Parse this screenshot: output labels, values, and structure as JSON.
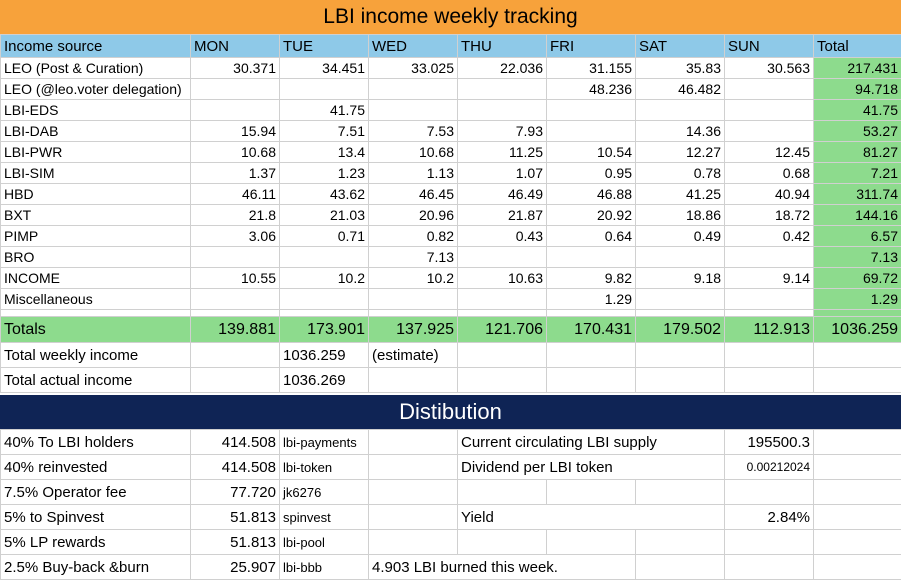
{
  "title": "LBI income weekly tracking",
  "header": [
    "Income source",
    "MON",
    "TUE",
    "WED",
    "THU",
    "FRI",
    "SAT",
    "SUN",
    "Total"
  ],
  "rows": [
    {
      "source": "LEO (Post & Curation)",
      "values": [
        "30.371",
        "34.451",
        "33.025",
        "22.036",
        "31.155",
        "35.83",
        "30.563"
      ],
      "total": "217.431"
    },
    {
      "source": "LEO (@leo.voter delegation)",
      "values": [
        "",
        "",
        "",
        "",
        "48.236",
        "46.482",
        ""
      ],
      "total": "94.718"
    },
    {
      "source": "LBI-EDS",
      "values": [
        "",
        "41.75",
        "",
        "",
        "",
        "",
        ""
      ],
      "total": "41.75"
    },
    {
      "source": "LBI-DAB",
      "values": [
        "15.94",
        "7.51",
        "7.53",
        "7.93",
        "",
        "14.36",
        ""
      ],
      "total": "53.27"
    },
    {
      "source": "LBI-PWR",
      "values": [
        "10.68",
        "13.4",
        "10.68",
        "11.25",
        "10.54",
        "12.27",
        "12.45"
      ],
      "total": "81.27"
    },
    {
      "source": "LBI-SIM",
      "values": [
        "1.37",
        "1.23",
        "1.13",
        "1.07",
        "0.95",
        "0.78",
        "0.68"
      ],
      "total": "7.21"
    },
    {
      "source": "HBD",
      "values": [
        "46.11",
        "43.62",
        "46.45",
        "46.49",
        "46.88",
        "41.25",
        "40.94"
      ],
      "total": "311.74"
    },
    {
      "source": "BXT",
      "values": [
        "21.8",
        "21.03",
        "20.96",
        "21.87",
        "20.92",
        "18.86",
        "18.72"
      ],
      "total": "144.16"
    },
    {
      "source": "PIMP",
      "values": [
        "3.06",
        "0.71",
        "0.82",
        "0.43",
        "0.64",
        "0.49",
        "0.42"
      ],
      "total": "6.57"
    },
    {
      "source": "BRO",
      "values": [
        "",
        "",
        "7.13",
        "",
        "",
        "",
        ""
      ],
      "total": "7.13"
    },
    {
      "source": "INCOME",
      "values": [
        "10.55",
        "10.2",
        "10.2",
        "10.63",
        "9.82",
        "9.18",
        "9.14"
      ],
      "total": "69.72"
    },
    {
      "source": "Miscellaneous",
      "values": [
        "",
        "",
        "",
        "",
        "1.29",
        "",
        ""
      ],
      "total": "1.29"
    }
  ],
  "totals": {
    "label": "Totals",
    "values": [
      "139.881",
      "173.901",
      "137.925",
      "121.706",
      "170.431",
      "179.502",
      "112.913"
    ],
    "total": "1036.259"
  },
  "summary": {
    "weekly_label": "Total weekly income",
    "weekly_value": "1036.259",
    "weekly_note": "(estimate)",
    "actual_label": "Total actual income",
    "actual_value": "1036.269"
  },
  "distribution": {
    "title": "Distibution",
    "rows": [
      {
        "label": "40% To LBI holders",
        "value": "414.508",
        "account": "lbi-payments"
      },
      {
        "label": "40% reinvested",
        "value": "414.508",
        "account": "lbi-token"
      },
      {
        "label": "7.5% Operator fee",
        "value": "77.720",
        "account": "jk6276"
      },
      {
        "label": "5% to Spinvest",
        "value": "51.813",
        "account": "spinvest"
      },
      {
        "label": "5% LP rewards",
        "value": "51.813",
        "account": "lbi-pool"
      },
      {
        "label": "2.5% Buy-back &burn",
        "value": "25.907",
        "account": "lbi-bbb"
      }
    ],
    "supply_label": "Current circulating LBI supply",
    "supply_value": "195500.3",
    "dividend_label": "Dividend per LBI token",
    "dividend_value": "0.00212024",
    "yield_label": "Yield",
    "yield_value": "2.84%",
    "burn_note": "4.903 LBI burned this week."
  },
  "colors": {
    "title_bg": "#F7A23B",
    "header_bg": "#8EC9E8",
    "total_bg": "#8DDB8D",
    "dist_bg": "#0F2455"
  }
}
